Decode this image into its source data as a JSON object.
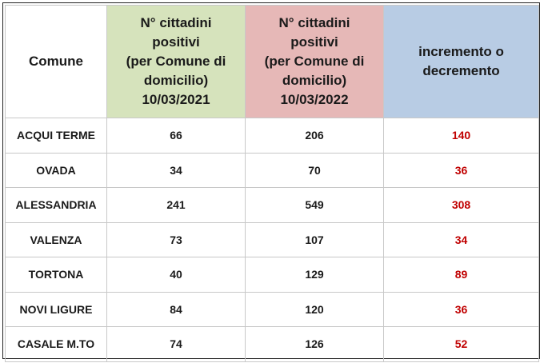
{
  "headers": {
    "comune": "Comune",
    "col2021": [
      "N° cittadini",
      "positivi",
      "(per Comune di",
      "domicilio)",
      "10/03/2021"
    ],
    "col2022": [
      "N° cittadini",
      "positivi",
      "(per Comune di",
      "domicilio)",
      "10/03/2022"
    ],
    "incremento": [
      "incremento o",
      "decremento"
    ]
  },
  "colors": {
    "header_2021": "#d6e3bc",
    "header_2022": "#e6b8b7",
    "header_incremento": "#b8cce4",
    "delta_text": "#c00000"
  },
  "rows": [
    {
      "comune": "ACQUI TERME",
      "v2021": "66",
      "v2022": "206",
      "delta": "140"
    },
    {
      "comune": "OVADA",
      "v2021": "34",
      "v2022": "70",
      "delta": "36"
    },
    {
      "comune": "ALESSANDRIA",
      "v2021": "241",
      "v2022": "549",
      "delta": "308"
    },
    {
      "comune": "VALENZA",
      "v2021": "73",
      "v2022": "107",
      "delta": "34"
    },
    {
      "comune": "TORTONA",
      "v2021": "40",
      "v2022": "129",
      "delta": "89"
    },
    {
      "comune": "NOVI LIGURE",
      "v2021": "84",
      "v2022": "120",
      "delta": "36"
    },
    {
      "comune": "CASALE M.TO",
      "v2021": "74",
      "v2022": "126",
      "delta": "52"
    }
  ]
}
